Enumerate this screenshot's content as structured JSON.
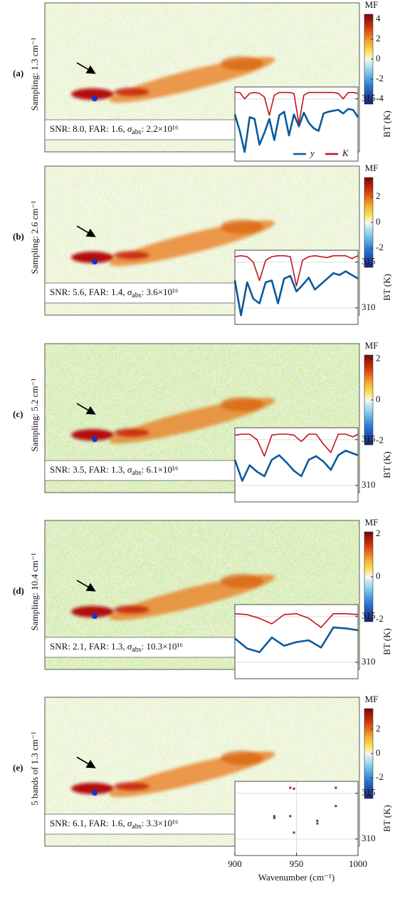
{
  "chart_data": [
    {
      "type": "line",
      "panel_label": "(a)",
      "ylabel_left": "Sampling: 1.3 cm⁻¹",
      "colorbar_label": "MF",
      "clim": [
        -4.5,
        4.5
      ],
      "cticks": [
        -4,
        -2,
        0,
        2,
        4
      ],
      "annotation": {
        "prefix": "SNR: 8.0, FAR: 1.6, ",
        "symbol": "σ",
        "subscript": "abs",
        "suffix": ": 2.2×10¹⁶"
      },
      "ylabel": "BT (K)",
      "xlim": [
        900,
        1000
      ],
      "ylim": [
        308.2,
        316.3
      ],
      "yticks": [
        315
      ],
      "grid": true,
      "legend": "bottom",
      "x": [
        900,
        904,
        908,
        912,
        916,
        920,
        924,
        928,
        932,
        936,
        940,
        944,
        948,
        952,
        956,
        960,
        964,
        968,
        972,
        976,
        980,
        984,
        988,
        992,
        996,
        1000
      ],
      "series": [
        {
          "name": "y",
          "color": "#0b5a9c",
          "values": [
            313.3,
            311.5,
            309.2,
            313.0,
            312.8,
            310.0,
            311.3,
            312.8,
            310.5,
            313.2,
            313.6,
            311.0,
            313.3,
            312.0,
            313.5,
            312.4,
            311.8,
            311.5,
            313.4,
            313.6,
            313.7,
            313.8,
            313.4,
            313.9,
            313.8,
            313.0
          ]
        },
        {
          "name": "K",
          "color": "#c0141c",
          "values": [
            315.7,
            315.7,
            315.0,
            315.6,
            315.7,
            315.6,
            315.2,
            313.2,
            315.4,
            315.7,
            315.7,
            315.7,
            315.6,
            312.3,
            315.4,
            315.7,
            315.7,
            315.7,
            315.7,
            315.7,
            315.7,
            315.6,
            315.0,
            315.7,
            315.7,
            315.6
          ]
        }
      ]
    },
    {
      "type": "line",
      "panel_label": "(b)",
      "ylabel_left": "Sampling: 2.6 cm⁻¹",
      "colorbar_label": "MF",
      "clim": [
        -3.5,
        3.5
      ],
      "cticks": [
        -2,
        0,
        2
      ],
      "annotation": {
        "prefix": "SNR: 5.6, FAR: 1.4, ",
        "symbol": "σ",
        "subscript": "abs",
        "suffix": ": 3.6×10¹⁶"
      },
      "ylabel": "BT (K)",
      "xlim": [
        900,
        1000
      ],
      "ylim": [
        308.2,
        316.3
      ],
      "yticks": [
        310,
        315
      ],
      "grid": true,
      "x": [
        900,
        905,
        910,
        915,
        920,
        925,
        930,
        935,
        940,
        945,
        950,
        955,
        960,
        965,
        970,
        975,
        980,
        985,
        990,
        995,
        1000
      ],
      "series": [
        {
          "color": "#0b5a9c",
          "values": [
            313.0,
            309.2,
            312.8,
            311.0,
            310.5,
            312.8,
            313.0,
            310.5,
            313.2,
            313.5,
            311.8,
            312.5,
            313.3,
            312.0,
            312.6,
            313.2,
            313.8,
            313.6,
            314.0,
            313.6,
            313.2
          ]
        },
        {
          "color": "#c0141c",
          "values": [
            315.6,
            315.7,
            315.6,
            315.0,
            313.0,
            315.2,
            315.6,
            315.7,
            315.7,
            315.6,
            312.4,
            315.2,
            315.6,
            315.7,
            315.6,
            315.5,
            315.7,
            315.7,
            315.7,
            315.4,
            315.7
          ]
        }
      ]
    },
    {
      "type": "line",
      "panel_label": "(c)",
      "ylabel_left": "Sampling: 5.2 cm⁻¹",
      "colorbar_label": "MF",
      "clim": [
        -2.2,
        2.2
      ],
      "cticks": [
        -2,
        0,
        2
      ],
      "annotation": {
        "prefix": "SNR: 3.5, FAR: 1.3, ",
        "symbol": "σ",
        "subscript": "abs",
        "suffix": ": 6.1×10¹⁶"
      },
      "ylabel": "BT (K)",
      "xlim": [
        900,
        1000
      ],
      "ylim": [
        308.2,
        316.3
      ],
      "yticks": [
        310,
        315
      ],
      "grid": true,
      "x": [
        900,
        906,
        912,
        918,
        924,
        930,
        936,
        942,
        948,
        954,
        960,
        966,
        972,
        978,
        984,
        990,
        996,
        1000
      ],
      "series": [
        {
          "color": "#0b5a9c",
          "values": [
            312.8,
            310.5,
            312.2,
            311.5,
            311.0,
            312.8,
            313.3,
            312.5,
            311.6,
            311.0,
            312.8,
            313.2,
            312.6,
            311.7,
            313.3,
            313.8,
            313.5,
            313.3
          ]
        },
        {
          "color": "#c0141c",
          "values": [
            315.5,
            315.6,
            315.6,
            315.0,
            313.2,
            315.5,
            315.6,
            315.6,
            315.5,
            314.8,
            315.6,
            315.6,
            314.5,
            313.6,
            315.6,
            315.6,
            315.3,
            315.6
          ]
        }
      ]
    },
    {
      "type": "line",
      "panel_label": "(d)",
      "ylabel_left": "Sampling: 10.4 cm⁻¹",
      "colorbar_label": "MF",
      "clim": [
        -2.1,
        2.1
      ],
      "cticks": [
        -2,
        0,
        2
      ],
      "annotation": {
        "prefix": "SNR: 2.1, FAR: 1.3, ",
        "symbol": "σ",
        "subscript": "abs",
        "suffix": ": 10.3×10¹⁶"
      },
      "ylabel": "BT (K)",
      "xlim": [
        900,
        1000
      ],
      "ylim": [
        308.2,
        316.3
      ],
      "yticks": [
        310,
        315
      ],
      "grid": true,
      "x": [
        900,
        910,
        920,
        930,
        940,
        950,
        960,
        970,
        980,
        990,
        1000
      ],
      "series": [
        {
          "color": "#0b5a9c",
          "values": [
            312.6,
            311.5,
            311.1,
            312.7,
            311.8,
            312.2,
            312.4,
            311.6,
            313.8,
            313.7,
            313.5
          ]
        },
        {
          "color": "#c0141c",
          "values": [
            315.3,
            315.2,
            314.8,
            314.2,
            315.2,
            315.3,
            314.8,
            313.8,
            315.3,
            315.3,
            315.2
          ]
        }
      ]
    },
    {
      "type": "scatter",
      "panel_label": "(e)",
      "ylabel_left": "5 bands of 1.3 cm⁻¹",
      "colorbar_label": "MF",
      "clim": [
        -3.7,
        3.7
      ],
      "cticks": [
        -2,
        0,
        2
      ],
      "annotation": {
        "prefix": "SNR: 6.1, FAR: 1.6, ",
        "symbol": "σ",
        "subscript": "abs",
        "suffix": ": 3.3×10¹⁶"
      },
      "ylabel": "BT (K)",
      "xlim": [
        900,
        1000
      ],
      "ylim": [
        308.2,
        316.3
      ],
      "yticks": [
        310,
        315
      ],
      "grid": true,
      "xticks": [
        900,
        950,
        1000
      ],
      "xlabel": "Wavenumber (cm⁻¹)",
      "x": [
        932,
        945,
        948,
        967,
        982
      ],
      "series": [
        {
          "color": "#0b5a9c",
          "values": [
            312.3,
            312.5,
            310.7,
            311.7,
            313.6
          ]
        },
        {
          "color": "#c0141c",
          "values": [
            312.5,
            315.6,
            315.5,
            312.0,
            315.6
          ]
        }
      ]
    }
  ]
}
